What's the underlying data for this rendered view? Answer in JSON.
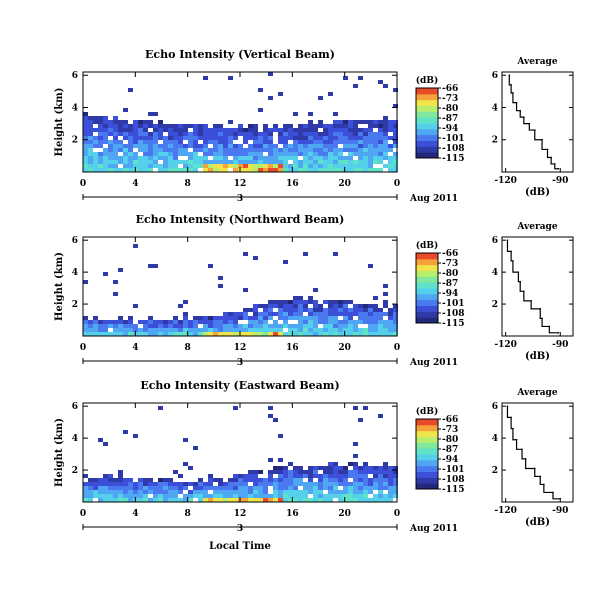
{
  "colors": {
    "colormap": [
      "#22297a",
      "#2f3aa8",
      "#3c4fd8",
      "#4a78ee",
      "#4fa6f2",
      "#55d0ea",
      "#5fe3c6",
      "#7fe89e",
      "#b8ee6e",
      "#f0e44a",
      "#f6a23a",
      "#e84a2a"
    ],
    "background": "#ffffff",
    "profile_line": "#000000"
  },
  "chart_data": [
    {
      "type": "heatmap",
      "title": "Echo Intensity (Vertical Beam)",
      "ylabel": "Height (km)",
      "xticks": [
        "0",
        "4",
        "8",
        "12",
        "16",
        "20",
        "0"
      ],
      "yticks": [
        "2",
        "4",
        "6"
      ],
      "xlim": [
        0,
        24
      ],
      "ylim": [
        0,
        6.2
      ],
      "date_axis": {
        "marker": "3",
        "month_label": "Aug 2011"
      },
      "colorbar": {
        "unit": "(dB)",
        "labels": [
          "-66",
          "-73",
          "-80",
          "-87",
          "-94",
          "-101",
          "-108",
          "-115"
        ],
        "range": [
          -115,
          -66
        ]
      },
      "echo_top": [
        {
          "x": 0,
          "km": 3.7
        },
        {
          "x": 4,
          "km": 3.3
        },
        {
          "x": 8,
          "km": 3.1
        },
        {
          "x": 12,
          "km": 3.0
        },
        {
          "x": 16,
          "km": 3.0
        },
        {
          "x": 20,
          "km": 3.3
        },
        {
          "x": 24,
          "km": 3.4
        }
      ],
      "profile": {
        "title": "Average",
        "xlabel": "(dB)",
        "xticks": [
          "-120",
          "-90"
        ],
        "xlim": [
          -122,
          -83
        ],
        "yticks": [
          "2",
          "4",
          "6"
        ],
        "points": [
          {
            "db": -118,
            "km": 6.0
          },
          {
            "db": -117,
            "km": 5.4
          },
          {
            "db": -116,
            "km": 4.9
          },
          {
            "db": -114,
            "km": 4.3
          },
          {
            "db": -112,
            "km": 3.8
          },
          {
            "db": -110,
            "km": 3.4
          },
          {
            "db": -107,
            "km": 3.0
          },
          {
            "db": -104,
            "km": 2.6
          },
          {
            "db": -100,
            "km": 2.0
          },
          {
            "db": -97,
            "km": 1.4
          },
          {
            "db": -95,
            "km": 0.9
          },
          {
            "db": -93,
            "km": 0.5
          },
          {
            "db": -91,
            "km": 0.2
          }
        ]
      }
    },
    {
      "type": "heatmap",
      "title": "Echo Intensity (Northward Beam)",
      "ylabel": "Height (km)",
      "xticks": [
        "0",
        "4",
        "8",
        "12",
        "16",
        "20",
        "0"
      ],
      "yticks": [
        "2",
        "4",
        "6"
      ],
      "xlim": [
        0,
        24
      ],
      "ylim": [
        0,
        6.2
      ],
      "date_axis": {
        "marker": "3",
        "month_label": "Aug 2011"
      },
      "colorbar": {
        "unit": "(dB)",
        "labels": [
          "-66",
          "-73",
          "-80",
          "-87",
          "-94",
          "-101",
          "-108",
          "-115"
        ],
        "range": [
          -115,
          -66
        ]
      },
      "echo_top": [
        {
          "x": 0,
          "km": 1.3
        },
        {
          "x": 4,
          "km": 1.2
        },
        {
          "x": 8,
          "km": 1.3
        },
        {
          "x": 12,
          "km": 1.7
        },
        {
          "x": 14,
          "km": 2.3
        },
        {
          "x": 16,
          "km": 2.4
        },
        {
          "x": 20,
          "km": 2.3
        },
        {
          "x": 24,
          "km": 2.0
        }
      ],
      "profile": {
        "title": "Average",
        "xlabel": "(dB)",
        "xticks": [
          "-120",
          "-90"
        ],
        "xlim": [
          -122,
          -83
        ],
        "yticks": [
          "2",
          "4",
          "6"
        ],
        "points": [
          {
            "db": -119,
            "km": 6.0
          },
          {
            "db": -117,
            "km": 5.3
          },
          {
            "db": -116,
            "km": 4.7
          },
          {
            "db": -113,
            "km": 4.0
          },
          {
            "db": -112,
            "km": 3.4
          },
          {
            "db": -110,
            "km": 2.8
          },
          {
            "db": -106,
            "km": 2.2
          },
          {
            "db": -101,
            "km": 1.7
          },
          {
            "db": -100,
            "km": 1.1
          },
          {
            "db": -96,
            "km": 0.6
          },
          {
            "db": -91,
            "km": 0.2
          }
        ]
      }
    },
    {
      "type": "heatmap",
      "title": "Echo Intensity (Eastward Beam)",
      "ylabel": "Height (km)",
      "xlabel": "Local Time",
      "xticks": [
        "0",
        "4",
        "8",
        "12",
        "16",
        "20",
        "0"
      ],
      "yticks": [
        "2",
        "4",
        "6"
      ],
      "xlim": [
        0,
        24
      ],
      "ylim": [
        0,
        6.2
      ],
      "date_axis": {
        "marker": "3",
        "month_label": "Aug 2011"
      },
      "colorbar": {
        "unit": "(dB)",
        "labels": [
          "-66",
          "-73",
          "-80",
          "-87",
          "-94",
          "-101",
          "-108",
          "-115"
        ],
        "range": [
          -115,
          -66
        ]
      },
      "echo_top": [
        {
          "x": 0,
          "km": 1.8
        },
        {
          "x": 4,
          "km": 1.6
        },
        {
          "x": 8,
          "km": 1.5
        },
        {
          "x": 12,
          "km": 1.8
        },
        {
          "x": 14,
          "km": 2.2
        },
        {
          "x": 16,
          "km": 2.5
        },
        {
          "x": 20,
          "km": 2.5
        },
        {
          "x": 24,
          "km": 2.3
        }
      ],
      "profile": {
        "title": "Average",
        "xlabel": "(dB)",
        "xticks": [
          "-120",
          "-90"
        ],
        "xlim": [
          -122,
          -83
        ],
        "yticks": [
          "2",
          "4",
          "6"
        ],
        "points": [
          {
            "db": -119,
            "km": 6.0
          },
          {
            "db": -117,
            "km": 5.3
          },
          {
            "db": -116,
            "km": 4.6
          },
          {
            "db": -114,
            "km": 3.9
          },
          {
            "db": -111,
            "km": 3.3
          },
          {
            "db": -109,
            "km": 2.7
          },
          {
            "db": -104,
            "km": 2.1
          },
          {
            "db": -101,
            "km": 1.6
          },
          {
            "db": -99,
            "km": 1.1
          },
          {
            "db": -94,
            "km": 0.6
          },
          {
            "db": -90,
            "km": 0.2
          }
        ]
      }
    }
  ]
}
